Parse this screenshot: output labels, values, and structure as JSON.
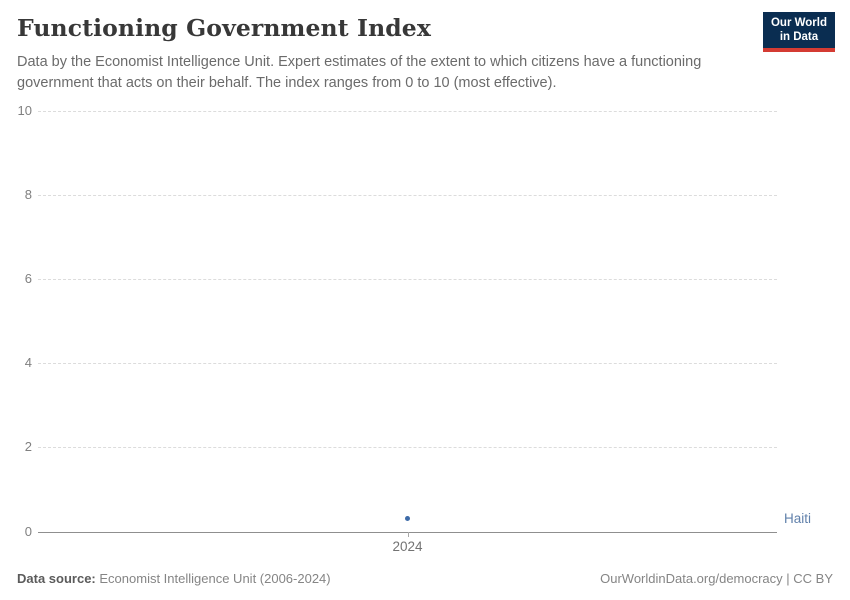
{
  "header": {
    "title": "Functioning Government Index",
    "subtitle": "Data by the Economist Intelligence Unit. Expert estimates of the extent to which citizens have a functioning government that acts on their behalf. The index ranges from 0 to 10 (most effective)."
  },
  "logo": {
    "line1": "Our World",
    "line2": "in Data",
    "background_color": "#0a2d51",
    "accent_color": "#d43b33"
  },
  "chart_data": {
    "type": "scatter",
    "title": "Functioning Government Index",
    "x": [
      2024
    ],
    "xtick_labels": [
      "2024"
    ],
    "series": [
      {
        "name": "Haiti",
        "values": [
          0.3
        ],
        "color": "#3d6ba8",
        "label_color": "#6181ab"
      }
    ],
    "xlabel": "",
    "ylabel": "",
    "ylim": [
      0,
      10
    ],
    "yticks": [
      0,
      2,
      4,
      6,
      8,
      10
    ],
    "grid": "horizontal-dashed",
    "legend_position": "entity-label-right"
  },
  "footer": {
    "source_label": "Data source:",
    "source_value": "Economist Intelligence Unit (2006-2024)",
    "rights": "OurWorldinData.org/democracy | CC BY"
  }
}
